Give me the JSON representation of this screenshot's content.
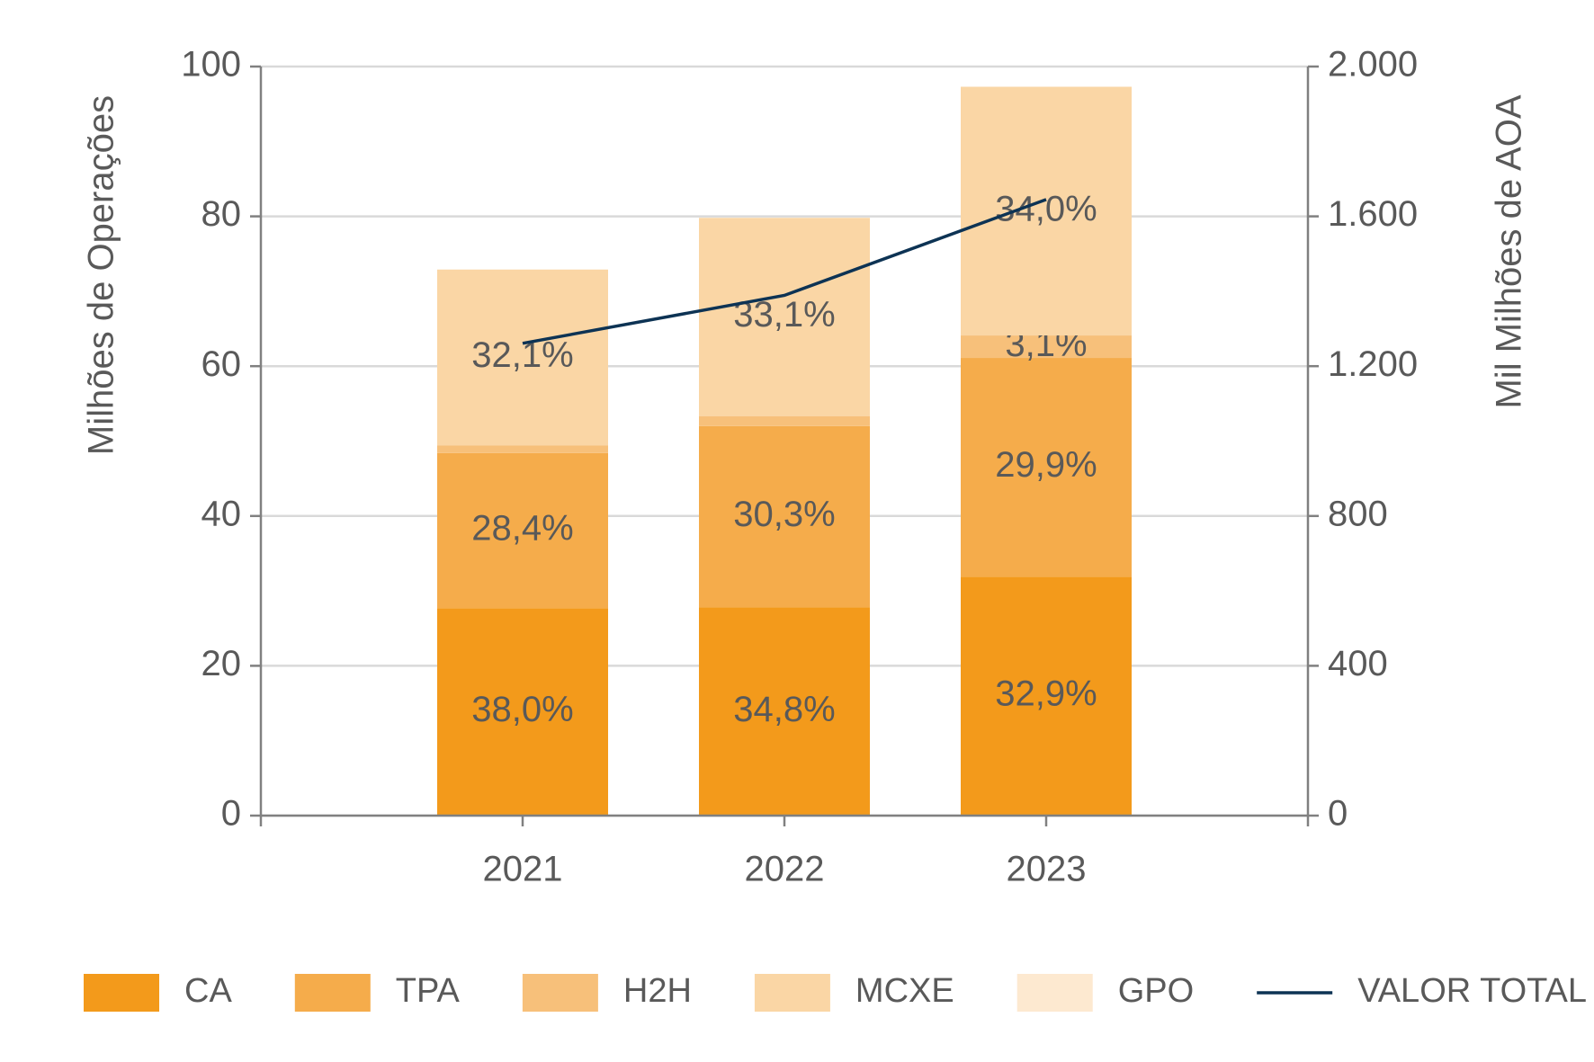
{
  "chart_data": {
    "type": "bar",
    "y_label": "Milhões de Operações",
    "y2_label": "Mil Milhões de AOA",
    "categories": [
      "2021",
      "2022",
      "2023"
    ],
    "series": [
      {
        "name": "CA",
        "color": "#f39a1b",
        "values": [
          27.7,
          27.8,
          31.9
        ],
        "value_labels": [
          "38,0%",
          "34,8%",
          "32,9%"
        ]
      },
      {
        "name": "TPA",
        "color": "#f5ac4b",
        "values": [
          20.7,
          24.2,
          29.2
        ],
        "value_labels": [
          "28,4%",
          "30,3%",
          "29,9%"
        ]
      },
      {
        "name": "H2H",
        "color": "#f7c07a",
        "values": [
          1.0,
          1.3,
          3.0
        ],
        "value_labels": [
          null,
          null,
          "3,1%"
        ]
      },
      {
        "name": "MCXE",
        "color": "#fad6a5",
        "values": [
          23.5,
          26.5,
          33.2
        ],
        "value_labels": [
          "32,1%",
          "33,1%",
          "34,0%"
        ]
      },
      {
        "name": "GPO",
        "color": "#fde9d0",
        "values": [
          0,
          0,
          0
        ]
      },
      {
        "name": "VALOR TOTAL",
        "color": "#0d3354",
        "type": "line",
        "axis": "y2",
        "values": [
          1261,
          1389,
          1645
        ]
      }
    ],
    "ylim": [
      0,
      100
    ],
    "yticks": [
      0,
      20,
      40,
      60,
      80,
      100
    ],
    "y2lim": [
      0,
      2000
    ],
    "y2ticks": [
      0,
      400,
      800,
      {
        "value": 1200,
        "label": "1.200"
      },
      {
        "value": 1600,
        "label": "1.600"
      },
      {
        "value": 2000,
        "label": "2.000"
      }
    ],
    "grid": true,
    "legend": "bottom"
  }
}
